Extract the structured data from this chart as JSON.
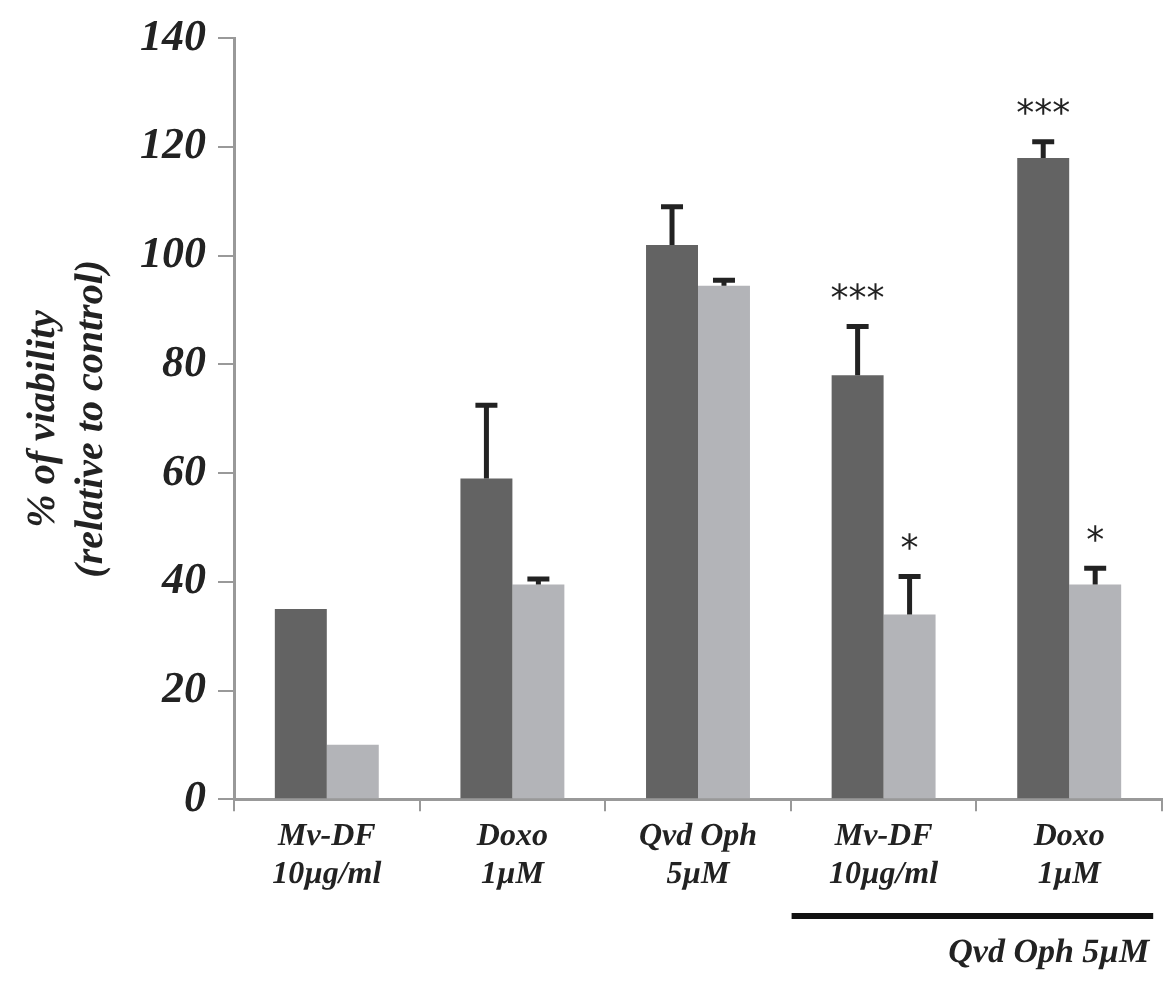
{
  "chart_data": {
    "type": "bar",
    "ylabel": "% of viability\n(relative to control)",
    "categories": [
      "Mv-DF\n10µg/ml",
      "Doxo\n1µM",
      "Qvd Oph\n5µM",
      "Mv-DF\n10µg/ml",
      "Doxo\n1µM"
    ],
    "series": [
      {
        "color": "#636363",
        "values": [
          35,
          59,
          102,
          78,
          118
        ],
        "errors": [
          null,
          13.5,
          7,
          9,
          3
        ],
        "value_labels": [
          null,
          null,
          null,
          "***",
          "***"
        ]
      },
      {
        "color": "#b3b4b8",
        "values": [
          10,
          39.5,
          94.5,
          34,
          39.5
        ],
        "errors": [
          null,
          1,
          1,
          7,
          3
        ],
        "value_labels": [
          null,
          null,
          null,
          "*",
          "*"
        ]
      }
    ],
    "ylim": [
      0,
      140
    ],
    "yticks": [
      0,
      20,
      40,
      60,
      80,
      100,
      120,
      140
    ],
    "grid": false,
    "legend": false,
    "annotations": [
      "Qvd Oph 5µM"
    ]
  }
}
